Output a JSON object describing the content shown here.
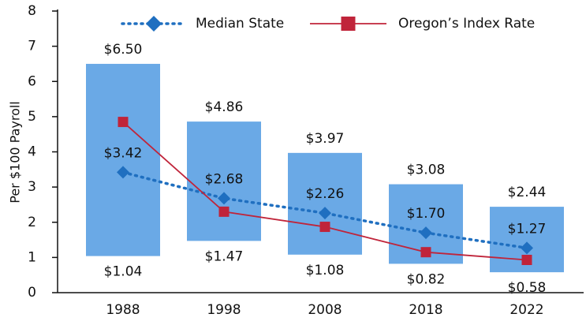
{
  "chart_data": {
    "type": "range-bar",
    "y_label": "Per $100 Payroll",
    "categories": [
      "1988",
      "1998",
      "2008",
      "2018",
      "2022"
    ],
    "range_color": "#6aa9e6",
    "range_low": {
      "values": [
        1.04,
        1.47,
        1.08,
        0.82,
        0.58
      ],
      "value_labels": [
        "$1.04",
        "$1.47",
        "$1.08",
        "$0.82",
        "$0.58"
      ]
    },
    "range_high": {
      "values": [
        6.5,
        4.86,
        3.97,
        3.08,
        2.44
      ],
      "value_labels": [
        "$6.50",
        "$4.86",
        "$3.97",
        "$3.08",
        "$2.44"
      ]
    },
    "series": [
      {
        "name": "Median State",
        "color": "#1f6fc0",
        "type": "line",
        "marker": "diamond",
        "dash": "dotted",
        "values": [
          3.42,
          2.68,
          2.26,
          1.7,
          1.27
        ],
        "value_labels": [
          "$3.42",
          "$2.68",
          "$2.26",
          "$1.70",
          "$1.27"
        ]
      },
      {
        "name": "Oregon’s Index Rate",
        "color": "#c0243a",
        "type": "line",
        "marker": "square",
        "dash": "solid",
        "values": [
          4.85,
          2.3,
          1.87,
          1.15,
          0.93
        ]
      }
    ],
    "ylim": [
      0,
      8
    ],
    "yticks": [
      0,
      1,
      2,
      3,
      4,
      5,
      6,
      7,
      8
    ],
    "grid": false
  }
}
